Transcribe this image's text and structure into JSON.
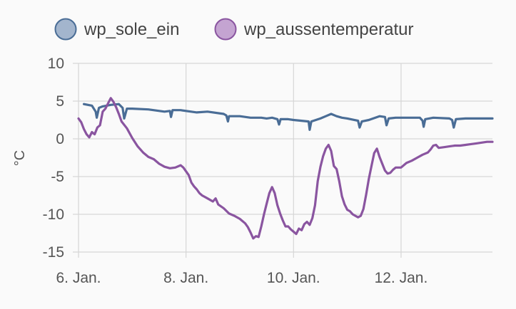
{
  "chart_data": {
    "type": "line",
    "ylabel": "°C",
    "xlabel": "",
    "title": "",
    "ylim": [
      -15,
      10
    ],
    "y_ticks": [
      10,
      5,
      0,
      -5,
      -10,
      -15
    ],
    "x_range": [
      6.0,
      13.7
    ],
    "x_unit": "day of January",
    "x_ticks": [
      {
        "x": 6,
        "label": "6. Jan."
      },
      {
        "x": 8,
        "label": "8. Jan."
      },
      {
        "x": 10,
        "label": "10. Jan."
      },
      {
        "x": 12,
        "label": "12. Jan."
      }
    ],
    "grid": true,
    "legend_position": "top",
    "series": [
      {
        "name": "wp_sole_ein",
        "color": "#4a6d96",
        "fill": "#a3b5cd",
        "points": [
          [
            6.1,
            4.6
          ],
          [
            6.25,
            4.4
          ],
          [
            6.32,
            3.6
          ],
          [
            6.34,
            2.8
          ],
          [
            6.38,
            4.1
          ],
          [
            6.45,
            4.3
          ],
          [
            6.6,
            4.5
          ],
          [
            6.75,
            4.6
          ],
          [
            6.82,
            4.1
          ],
          [
            6.85,
            2.7
          ],
          [
            6.9,
            4.0
          ],
          [
            7.0,
            4.0
          ],
          [
            7.3,
            3.9
          ],
          [
            7.6,
            3.6
          ],
          [
            7.7,
            3.7
          ],
          [
            7.72,
            2.9
          ],
          [
            7.75,
            3.8
          ],
          [
            7.9,
            3.8
          ],
          [
            8.2,
            3.5
          ],
          [
            8.4,
            3.6
          ],
          [
            8.7,
            3.3
          ],
          [
            8.75,
            3.1
          ],
          [
            8.78,
            2.3
          ],
          [
            8.8,
            3.0
          ],
          [
            9.0,
            3.0
          ],
          [
            9.2,
            2.8
          ],
          [
            9.4,
            2.8
          ],
          [
            9.5,
            2.7
          ],
          [
            9.6,
            2.8
          ],
          [
            9.7,
            2.6
          ],
          [
            9.73,
            1.9
          ],
          [
            9.76,
            2.6
          ],
          [
            9.9,
            2.6
          ],
          [
            10.0,
            2.5
          ],
          [
            10.15,
            2.4
          ],
          [
            10.28,
            2.3
          ],
          [
            10.3,
            1.2
          ],
          [
            10.33,
            2.3
          ],
          [
            10.5,
            2.7
          ],
          [
            10.6,
            3.0
          ],
          [
            10.7,
            3.3
          ],
          [
            10.8,
            3.0
          ],
          [
            10.9,
            2.8
          ],
          [
            11.0,
            2.7
          ],
          [
            11.2,
            2.4
          ],
          [
            11.23,
            1.5
          ],
          [
            11.27,
            2.3
          ],
          [
            11.4,
            2.5
          ],
          [
            11.6,
            3.0
          ],
          [
            11.7,
            2.9
          ],
          [
            11.73,
            1.8
          ],
          [
            11.77,
            2.7
          ],
          [
            11.9,
            2.8
          ],
          [
            12.1,
            2.8
          ],
          [
            12.35,
            2.8
          ],
          [
            12.4,
            2.4
          ],
          [
            12.42,
            1.6
          ],
          [
            12.45,
            2.6
          ],
          [
            12.6,
            2.8
          ],
          [
            12.9,
            2.7
          ],
          [
            12.95,
            2.5
          ],
          [
            12.98,
            1.5
          ],
          [
            13.02,
            2.6
          ],
          [
            13.2,
            2.7
          ],
          [
            13.4,
            2.7
          ],
          [
            13.7,
            2.7
          ]
        ]
      },
      {
        "name": "wp_aussentemperatur",
        "color": "#8a55a0",
        "fill": "#c4a4d1",
        "points": [
          [
            6.0,
            2.7
          ],
          [
            6.05,
            2.2
          ],
          [
            6.1,
            1.3
          ],
          [
            6.15,
            0.6
          ],
          [
            6.2,
            0.2
          ],
          [
            6.25,
            0.9
          ],
          [
            6.3,
            0.6
          ],
          [
            6.35,
            1.5
          ],
          [
            6.4,
            1.8
          ],
          [
            6.45,
            3.6
          ],
          [
            6.5,
            4.0
          ],
          [
            6.55,
            4.7
          ],
          [
            6.6,
            5.4
          ],
          [
            6.65,
            4.9
          ],
          [
            6.7,
            4.2
          ],
          [
            6.75,
            3.3
          ],
          [
            6.8,
            2.3
          ],
          [
            6.9,
            1.4
          ],
          [
            7.0,
            0.1
          ],
          [
            7.1,
            -1.0
          ],
          [
            7.2,
            -1.8
          ],
          [
            7.3,
            -2.4
          ],
          [
            7.4,
            -2.7
          ],
          [
            7.5,
            -3.3
          ],
          [
            7.6,
            -3.7
          ],
          [
            7.7,
            -3.9
          ],
          [
            7.8,
            -3.8
          ],
          [
            7.9,
            -3.5
          ],
          [
            7.95,
            -3.8
          ],
          [
            8.0,
            -4.3
          ],
          [
            8.05,
            -4.8
          ],
          [
            8.1,
            -5.8
          ],
          [
            8.15,
            -6.3
          ],
          [
            8.2,
            -6.7
          ],
          [
            8.25,
            -7.2
          ],
          [
            8.3,
            -7.5
          ],
          [
            8.4,
            -7.9
          ],
          [
            8.5,
            -8.3
          ],
          [
            8.55,
            -7.9
          ],
          [
            8.6,
            -8.7
          ],
          [
            8.7,
            -9.2
          ],
          [
            8.8,
            -9.9
          ],
          [
            8.9,
            -10.2
          ],
          [
            9.0,
            -10.6
          ],
          [
            9.1,
            -11.2
          ],
          [
            9.15,
            -11.7
          ],
          [
            9.2,
            -12.4
          ],
          [
            9.25,
            -13.2
          ],
          [
            9.3,
            -12.9
          ],
          [
            9.35,
            -13.0
          ],
          [
            9.4,
            -11.6
          ],
          [
            9.45,
            -10.0
          ],
          [
            9.5,
            -8.6
          ],
          [
            9.55,
            -7.2
          ],
          [
            9.6,
            -6.4
          ],
          [
            9.65,
            -7.2
          ],
          [
            9.7,
            -8.8
          ],
          [
            9.75,
            -9.9
          ],
          [
            9.8,
            -10.8
          ],
          [
            9.85,
            -11.6
          ],
          [
            9.9,
            -11.6
          ],
          [
            9.95,
            -12.0
          ],
          [
            10.0,
            -12.3
          ],
          [
            10.05,
            -12.6
          ],
          [
            10.1,
            -11.9
          ],
          [
            10.15,
            -12.1
          ],
          [
            10.2,
            -11.3
          ],
          [
            10.25,
            -11.0
          ],
          [
            10.3,
            -11.4
          ],
          [
            10.35,
            -10.5
          ],
          [
            10.4,
            -8.8
          ],
          [
            10.45,
            -5.6
          ],
          [
            10.5,
            -3.7
          ],
          [
            10.55,
            -2.3
          ],
          [
            10.6,
            -1.3
          ],
          [
            10.65,
            -0.8
          ],
          [
            10.7,
            -1.6
          ],
          [
            10.75,
            -3.6
          ],
          [
            10.8,
            -4.0
          ],
          [
            10.85,
            -5.6
          ],
          [
            10.9,
            -7.6
          ],
          [
            10.95,
            -8.7
          ],
          [
            11.0,
            -9.4
          ],
          [
            11.05,
            -9.6
          ],
          [
            11.1,
            -10.0
          ],
          [
            11.15,
            -10.2
          ],
          [
            11.2,
            -10.4
          ],
          [
            11.25,
            -10.2
          ],
          [
            11.3,
            -9.3
          ],
          [
            11.35,
            -7.4
          ],
          [
            11.4,
            -5.3
          ],
          [
            11.45,
            -3.6
          ],
          [
            11.5,
            -1.9
          ],
          [
            11.55,
            -1.3
          ],
          [
            11.6,
            -2.4
          ],
          [
            11.65,
            -3.3
          ],
          [
            11.7,
            -4.2
          ],
          [
            11.75,
            -4.6
          ],
          [
            11.8,
            -4.5
          ],
          [
            11.85,
            -4.1
          ],
          [
            11.9,
            -3.8
          ],
          [
            12.0,
            -3.8
          ],
          [
            12.1,
            -3.2
          ],
          [
            12.2,
            -2.9
          ],
          [
            12.3,
            -2.5
          ],
          [
            12.4,
            -2.1
          ],
          [
            12.5,
            -1.8
          ],
          [
            12.55,
            -1.4
          ],
          [
            12.6,
            -0.9
          ],
          [
            12.65,
            -0.8
          ],
          [
            12.7,
            -1.2
          ],
          [
            12.8,
            -1.1
          ],
          [
            12.9,
            -1.0
          ],
          [
            13.0,
            -0.9
          ],
          [
            13.1,
            -0.9
          ],
          [
            13.2,
            -0.8
          ],
          [
            13.3,
            -0.7
          ],
          [
            13.4,
            -0.6
          ],
          [
            13.5,
            -0.5
          ],
          [
            13.6,
            -0.4
          ],
          [
            13.7,
            -0.4
          ]
        ]
      }
    ]
  }
}
